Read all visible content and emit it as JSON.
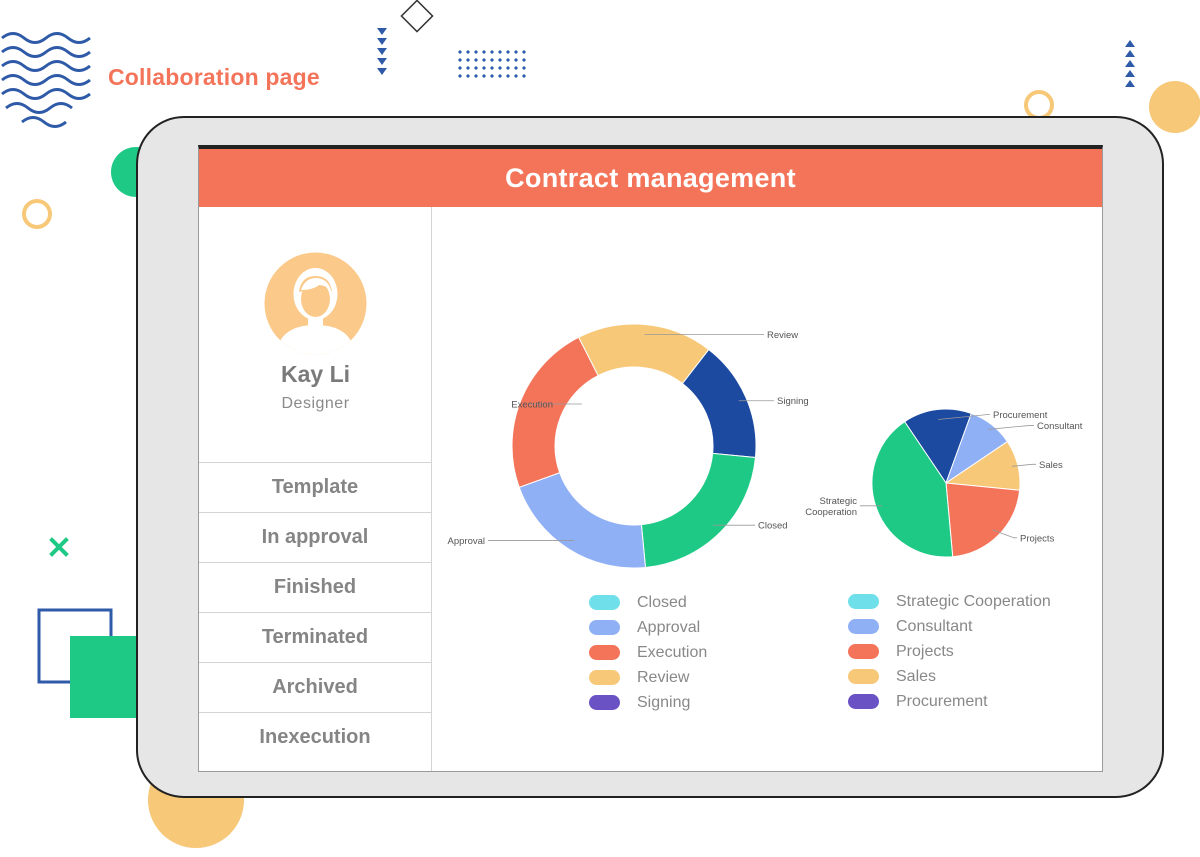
{
  "page": {
    "heading": "Collaboration page"
  },
  "colors": {
    "accent": "#f4745a",
    "green": "#1dc985",
    "yellow": "#f7c878",
    "blue_dark": "#1c4aa0",
    "blue_light": "#8fb0f5",
    "cyan": "#6fe0ea",
    "purple": "#6a52c4",
    "deco_blue": "#2e5aa8"
  },
  "screen": {
    "title": "Contract management"
  },
  "profile": {
    "name": "Kay Li",
    "role": "Designer",
    "avatar_icon": "woman-avatar-icon"
  },
  "sidebar": {
    "items": [
      {
        "label": "Template"
      },
      {
        "label": "In approval"
      },
      {
        "label": "Finished"
      },
      {
        "label": "Terminated"
      },
      {
        "label": "Archived"
      },
      {
        "label": "Inexecution"
      }
    ]
  },
  "chart_data": [
    {
      "type": "pie",
      "variant": "donut",
      "categories": [
        "Review",
        "Signing",
        "Closed",
        "Approval",
        "Execution"
      ],
      "values": [
        18,
        16,
        22,
        21,
        23
      ],
      "colors": [
        "#f7c878",
        "#1c4aa0",
        "#1dc985",
        "#8fb0f5",
        "#f4745a"
      ],
      "legend": [
        {
          "label": "Closed",
          "color": "#6fe0ea"
        },
        {
          "label": "Approval",
          "color": "#8fb0f5"
        },
        {
          "label": "Execution",
          "color": "#f4745a"
        },
        {
          "label": "Review",
          "color": "#f7c878"
        },
        {
          "label": "Signing",
          "color": "#6a52c4"
        }
      ]
    },
    {
      "type": "pie",
      "categories": [
        "Procurement",
        "Consultant",
        "Sales",
        "Projects",
        "Strategic Cooperation"
      ],
      "callouts": [
        "Procurement",
        "Consultant",
        "Sales",
        "Projects",
        "Strategic\nCooperation"
      ],
      "values": [
        15,
        10,
        11,
        22,
        42
      ],
      "colors": [
        "#1c4aa0",
        "#8fb0f5",
        "#f7c878",
        "#f4745a",
        "#1dc985"
      ],
      "legend": [
        {
          "label": "Strategic Cooperation",
          "color": "#6fe0ea"
        },
        {
          "label": "Consultant",
          "color": "#8fb0f5"
        },
        {
          "label": "Projects",
          "color": "#f4745a"
        },
        {
          "label": "Sales",
          "color": "#f7c878"
        },
        {
          "label": "Procurement",
          "color": "#6a52c4"
        }
      ]
    }
  ]
}
